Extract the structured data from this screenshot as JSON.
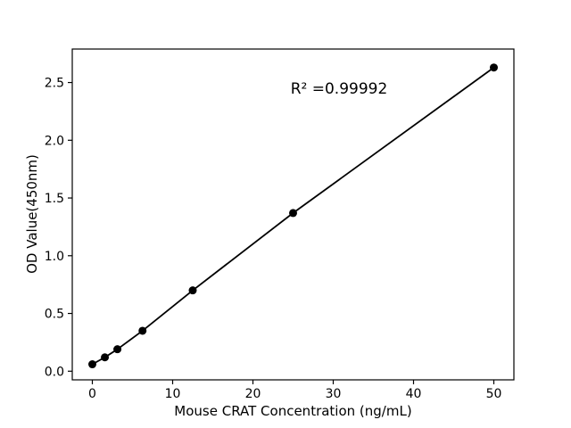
{
  "chart_data": {
    "type": "line",
    "title": "",
    "xlabel": "Mouse CRAT Concentration (ng/mL)",
    "ylabel": "OD Value(450nm)",
    "x": [
      0,
      1.56,
      3.12,
      6.25,
      12.5,
      25,
      50
    ],
    "y": [
      0.06,
      0.12,
      0.19,
      0.35,
      0.7,
      1.37,
      2.63
    ],
    "xlim": [
      -2.5,
      52.5
    ],
    "ylim": [
      -0.075,
      2.79
    ],
    "xtick_values": [
      0,
      10,
      20,
      30,
      40,
      50
    ],
    "xtick_labels": [
      "0",
      "10",
      "20",
      "30",
      "40",
      "50"
    ],
    "ytick_values": [
      0,
      0.5,
      1,
      1.5,
      2,
      2.5
    ],
    "ytick_labels": [
      "0.0",
      "0.5",
      "1.0",
      "1.5",
      "2.0",
      "2.5"
    ],
    "annotation": {
      "text": "R² =0.99992",
      "x": 30.7,
      "y": 2.38
    },
    "grid": false,
    "legend": null,
    "line_color": "#000000",
    "marker_color": "#000000",
    "marker_shape": "circle",
    "background": "#ffffff"
  }
}
